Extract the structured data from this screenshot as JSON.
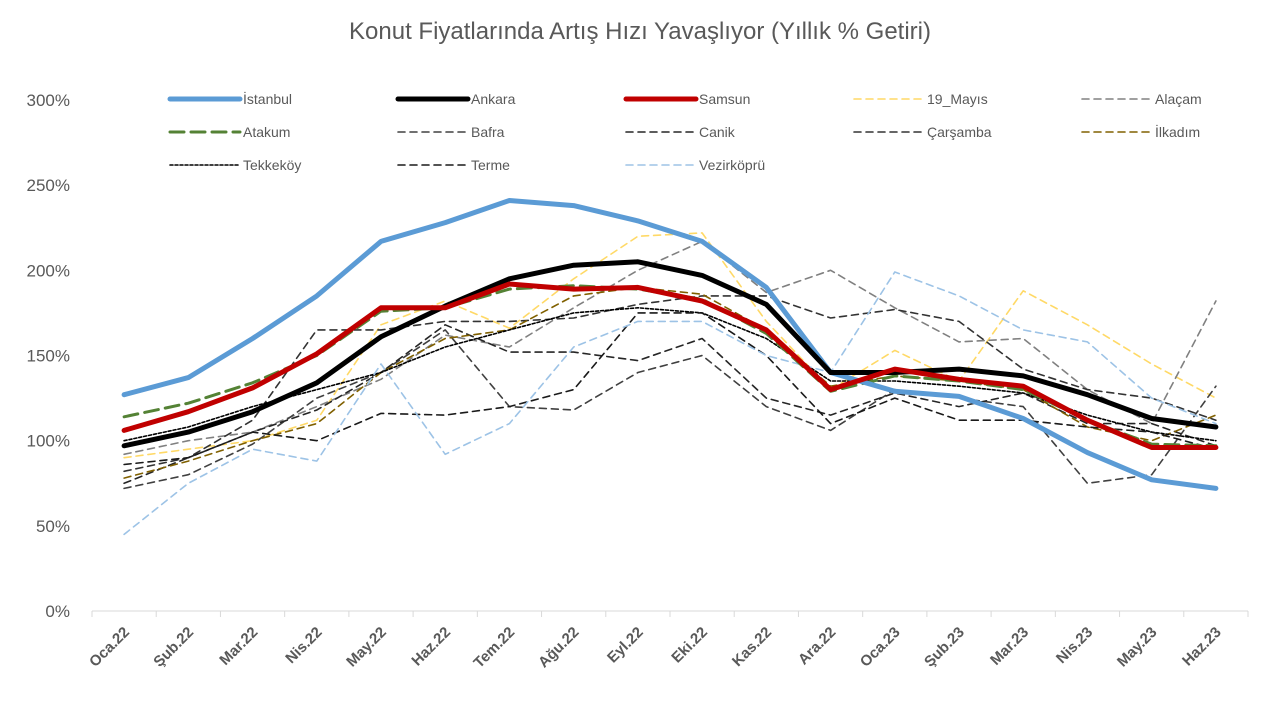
{
  "chart_data": {
    "type": "line",
    "title": "Konut Fiyatlarında Artış Hızı Yavaşlıyor (Yıllık % Getiri)",
    "xlabel": "",
    "ylabel": "",
    "ylim": [
      0,
      300
    ],
    "y_ticks": [
      "0%",
      "50%",
      "100%",
      "150%",
      "200%",
      "250%",
      "300%"
    ],
    "grid": false,
    "legend_position": "top",
    "categories": [
      "Oca.22",
      "Şub.22",
      "Mar.22",
      "Nis.22",
      "May.22",
      "Haz.22",
      "Tem.22",
      "Ağu.22",
      "Eyl.22",
      "Eki.22",
      "Kas.22",
      "Ara.22",
      "Oca.23",
      "Şub.23",
      "Mar.23",
      "Nis.23",
      "May.23",
      "Haz.23"
    ],
    "series": [
      {
        "name": "İstanbul",
        "color": "#5b9bd5",
        "style": "solid-thick",
        "values": [
          127,
          137,
          160,
          185,
          217,
          228,
          241,
          238,
          229,
          217,
          190,
          140,
          129,
          126,
          113,
          93,
          77,
          72
        ]
      },
      {
        "name": "Ankara",
        "color": "#000000",
        "style": "solid-thick",
        "values": [
          97,
          105,
          117,
          134,
          161,
          179,
          195,
          203,
          205,
          197,
          180,
          140,
          140,
          142,
          138,
          127,
          113,
          108
        ]
      },
      {
        "name": "Samsun",
        "color": "#c00000",
        "style": "solid-thick",
        "values": [
          106,
          117,
          131,
          151,
          178,
          178,
          192,
          189,
          190,
          182,
          165,
          130,
          142,
          136,
          132,
          112,
          96,
          96
        ]
      },
      {
        "name": "19_Mayıs",
        "color": "#ffd966",
        "style": "dashed",
        "values": [
          90,
          95,
          100,
          112,
          168,
          182,
          166,
          195,
          220,
          222,
          170,
          130,
          153,
          135,
          188,
          168,
          145,
          125
        ]
      },
      {
        "name": "Alaçam",
        "color": "#808080",
        "style": "dashed",
        "values": [
          92,
          100,
          105,
          120,
          136,
          162,
          155,
          178,
          200,
          217,
          187,
          200,
          178,
          158,
          160,
          130,
          110,
          182
        ]
      },
      {
        "name": "Atakum",
        "color": "#548235",
        "style": "dashed-thick",
        "values": [
          114,
          122,
          134,
          150,
          176,
          178,
          189,
          191,
          189,
          183,
          163,
          129,
          138,
          135,
          130,
          112,
          98,
          97
        ]
      },
      {
        "name": "Bafra",
        "color": "#404040",
        "style": "dashed",
        "values": [
          72,
          80,
          98,
          125,
          140,
          165,
          120,
          118,
          140,
          150,
          120,
          106,
          130,
          125,
          120,
          75,
          80,
          132
        ]
      },
      {
        "name": "Canik",
        "color": "#262626",
        "style": "dashed",
        "values": [
          75,
          90,
          105,
          118,
          140,
          168,
          152,
          152,
          147,
          160,
          125,
          115,
          128,
          120,
          128,
          110,
          110,
          97
        ]
      },
      {
        "name": "Çarşamba",
        "color": "#333333",
        "style": "dashed",
        "values": [
          82,
          90,
          112,
          165,
          165,
          170,
          170,
          172,
          180,
          185,
          185,
          172,
          177,
          170,
          142,
          130,
          125,
          112
        ]
      },
      {
        "name": "İlkadım",
        "color": "#806000",
        "style": "dashed",
        "values": [
          78,
          88,
          100,
          110,
          140,
          160,
          165,
          185,
          190,
          186,
          165,
          132,
          138,
          135,
          130,
          108,
          100,
          115
        ]
      },
      {
        "name": "Tekkeköy",
        "color": "#000000",
        "style": "dotted",
        "values": [
          100,
          108,
          120,
          130,
          140,
          155,
          165,
          175,
          178,
          175,
          160,
          135,
          135,
          132,
          128,
          115,
          105,
          100
        ]
      },
      {
        "name": "Terme",
        "color": "#1a1a1a",
        "style": "dashed",
        "values": [
          86,
          90,
          105,
          100,
          116,
          115,
          120,
          130,
          175,
          175,
          150,
          110,
          125,
          112,
          112,
          108,
          105,
          95
        ]
      },
      {
        "name": "Vezirköprü",
        "color": "#9dc3e6",
        "style": "dashed",
        "values": [
          45,
          75,
          95,
          88,
          145,
          92,
          110,
          155,
          170,
          170,
          150,
          140,
          199,
          185,
          165,
          158,
          125,
          110
        ]
      }
    ]
  }
}
